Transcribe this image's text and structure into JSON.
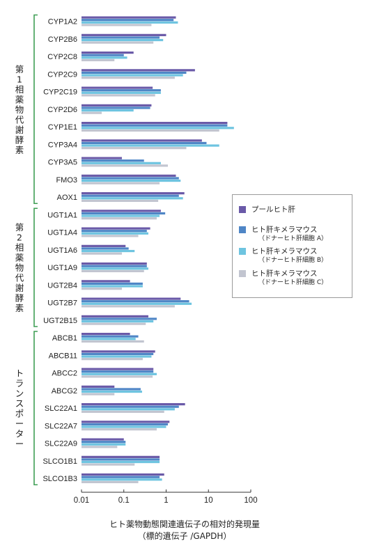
{
  "chart_data": {
    "type": "bar",
    "orientation": "horizontal",
    "xscale": "log",
    "xlim": [
      0.01,
      100
    ],
    "xticks": [
      "0.01",
      "0.1",
      "1",
      "10",
      "100"
    ],
    "xlabel": "ヒト薬物動態関連遺伝子の相対的発現量",
    "xlabel_sub": "（標的遺伝子 /GAPDH）",
    "groups": [
      {
        "label": "第1相薬物代謝酵素",
        "categories": [
          "CYP1A2",
          "CYP2B6",
          "CYP2C8",
          "CYP2C9",
          "CYP2C19",
          "CYP2D6",
          "CYP1E1",
          "CYP3A4",
          "CYP3A5",
          "FMO3",
          "AOX1"
        ]
      },
      {
        "label": "第2相薬物代謝酵素",
        "categories": [
          "UGT1A1",
          "UGT1A4",
          "UGT1A6",
          "UGT1A9",
          "UGT2B4",
          "UGT2B7",
          "UGT2B15"
        ]
      },
      {
        "label": "トランスポーター",
        "categories": [
          "ABCB1",
          "ABCB11",
          "ABCC2",
          "ABCG2",
          "SLC22A1",
          "SLC22A7",
          "SLC22A9",
          "SLCO1B1",
          "SLCO1B3"
        ]
      }
    ],
    "categories": [
      "CYP1A2",
      "CYP2B6",
      "CYP2C8",
      "CYP2C9",
      "CYP2C19",
      "CYP2D6",
      "CYP1E1",
      "CYP3A4",
      "CYP3A5",
      "FMO3",
      "AOX1",
      "UGT1A1",
      "UGT1A4",
      "UGT1A6",
      "UGT1A9",
      "UGT2B4",
      "UGT2B7",
      "UGT2B15",
      "ABCB1",
      "ABCB11",
      "ABCC2",
      "ABCG2",
      "SLC22A1",
      "SLC22A7",
      "SLC22A9",
      "SLCO1B1",
      "SLCO1B3"
    ],
    "series": [
      {
        "name": "プールヒト肝",
        "name_sub": "",
        "color": "#6a5aa8",
        "values": [
          1.7,
          1.0,
          0.17,
          4.8,
          0.48,
          0.45,
          28,
          7,
          0.09,
          1.7,
          2.7,
          0.75,
          0.42,
          0.11,
          0.35,
          0.14,
          2.2,
          0.38,
          0.14,
          0.55,
          0.5,
          0.06,
          2.8,
          1.2,
          0.1,
          0.7,
          0.9
        ]
      },
      {
        "name": "ヒト肝キメラマウス",
        "name_sub": "（ドナーヒト肝細胞 A）",
        "color": "#4f86c6",
        "values": [
          1.5,
          0.7,
          0.1,
          3.0,
          0.75,
          0.42,
          28,
          9,
          0.3,
          2.0,
          2.0,
          0.95,
          0.35,
          0.13,
          0.35,
          0.28,
          3.5,
          0.6,
          0.22,
          0.5,
          0.5,
          0.25,
          2.0,
          1.1,
          0.11,
          0.7,
          0.7
        ]
      },
      {
        "name": "ヒト肝キメラマウス",
        "name_sub": "（ドナーヒト肝細胞 B）",
        "color": "#6ec4e0",
        "values": [
          1.9,
          0.85,
          0.12,
          2.5,
          0.75,
          0.17,
          40,
          18,
          0.75,
          2.2,
          2.5,
          0.7,
          0.38,
          0.18,
          0.38,
          0.28,
          4.0,
          0.5,
          0.19,
          0.45,
          0.6,
          0.27,
          1.6,
          1.0,
          0.11,
          0.7,
          0.8
        ]
      },
      {
        "name": "ヒト肝キメラマウス",
        "name_sub": "（ドナーヒト肝細胞 C）",
        "color": "#c2c5d0",
        "values": [
          0.45,
          0.5,
          0.06,
          1.6,
          0.55,
          0.03,
          18,
          3.0,
          1.1,
          0.7,
          0.65,
          0.6,
          0.22,
          0.09,
          0.3,
          0.09,
          1.6,
          0.33,
          0.3,
          0.28,
          0.48,
          0.06,
          0.9,
          0.6,
          0.07,
          0.18,
          0.22
        ]
      }
    ]
  }
}
